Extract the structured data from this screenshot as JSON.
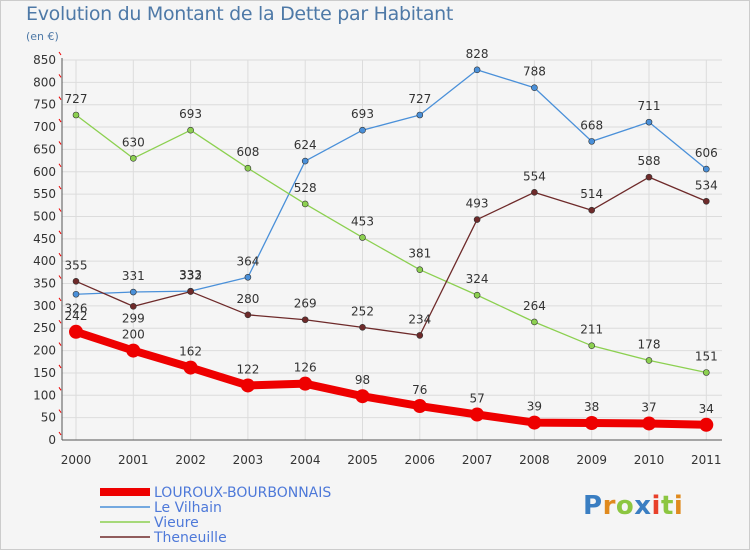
{
  "title": "Evolution du Montant de la Dette par Habitant",
  "subtitle": "(en €)",
  "logo_text": "Proxiti",
  "chart_data": {
    "type": "line",
    "title": "Evolution du Montant de la Dette par Habitant",
    "ylabel": "(en €)",
    "xlabel": "",
    "ylim": [
      0,
      850
    ],
    "y_ticks": [
      0,
      50,
      100,
      150,
      200,
      250,
      300,
      350,
      400,
      450,
      500,
      550,
      600,
      650,
      700,
      750,
      800,
      850
    ],
    "x_ticks": [
      "2000",
      "2001",
      "2002",
      "2003",
      "2004",
      "2005",
      "2006",
      "2007",
      "2008",
      "2009",
      "2010",
      "2011"
    ],
    "grid": true,
    "legend_position": "bottom-left",
    "series": [
      {
        "name": "Le Vilhain",
        "color": "#4a90d9",
        "values": [
          326,
          331,
          333,
          364,
          624,
          693,
          727,
          828,
          788,
          668,
          711,
          606
        ]
      },
      {
        "name": "Vieure",
        "color": "#8cd050",
        "values": [
          727,
          630,
          693,
          608,
          528,
          453,
          381,
          324,
          264,
          211,
          178,
          151
        ]
      },
      {
        "name": "Theneuille",
        "color": "#6e2a2a",
        "values": [
          355,
          299,
          332,
          280,
          269,
          252,
          234,
          493,
          554,
          514,
          588,
          534
        ]
      },
      {
        "name": "LOUROUX-BOURBONNAIS",
        "color": "#ee0000",
        "values": [
          242,
          200,
          162,
          122,
          126,
          98,
          76,
          57,
          39,
          38,
          37,
          34
        ],
        "highlight": true
      }
    ],
    "legend": [
      {
        "name": "LOUROUX-BOURBONNAIS",
        "color": "#ee0000"
      },
      {
        "name": "Le Vilhain",
        "color": "#4a90d9"
      },
      {
        "name": "Vieure",
        "color": "#8cd050"
      },
      {
        "name": "Theneuille",
        "color": "#6e2a2a"
      }
    ]
  }
}
